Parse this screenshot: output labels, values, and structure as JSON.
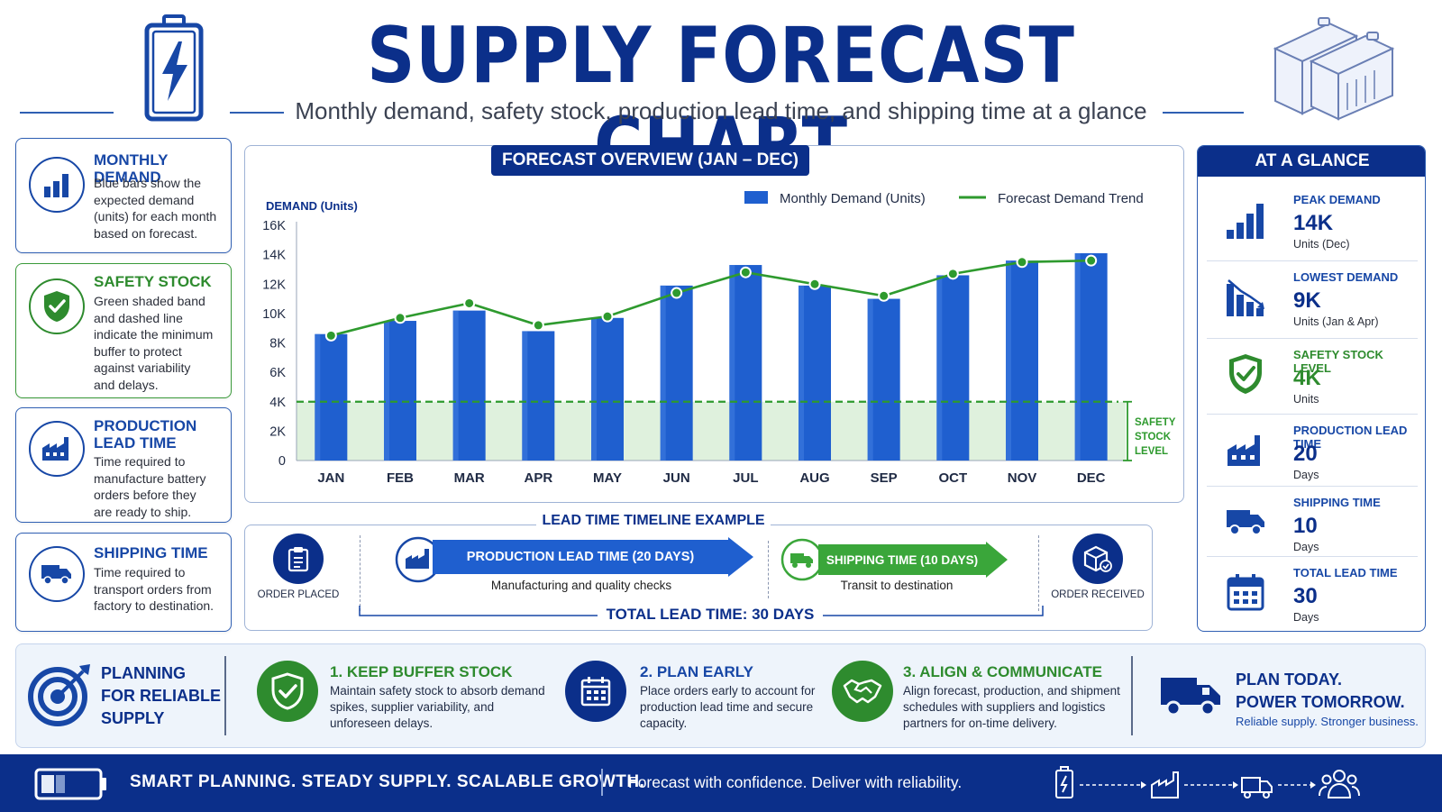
{
  "header": {
    "title": "SUPPLY FORECAST CHART",
    "subtitle": "Monthly demand, safety stock, production lead time, and shipping time at a glance",
    "logo_icon": "battery-bolt-icon",
    "art_icon": "battery-cells-icon"
  },
  "info_cards": [
    {
      "title": "MONTHLY DEMAND",
      "text_lines": [
        "Blue bars show the",
        "expected demand",
        "(units) for each month",
        "based on forecast."
      ],
      "icon": "bar-chart-icon",
      "color": "#1747a6"
    },
    {
      "title": "SAFETY STOCK",
      "text_lines": [
        "Green shaded band",
        "and dashed line",
        "indicate the minimum",
        "buffer to protect",
        "against variability",
        "and delays."
      ],
      "icon": "shield-check-icon",
      "color": "#2e8b2e"
    },
    {
      "title_lines": [
        "PRODUCTION",
        "LEAD TIME"
      ],
      "text_lines": [
        "Time required to",
        "manufacture battery",
        "orders before they",
        "are ready to ship."
      ],
      "icon": "factory-icon",
      "color": "#1747a6"
    },
    {
      "title": "SHIPPING TIME",
      "text_lines": [
        "Time required to",
        "transport orders from",
        "factory to destination."
      ],
      "icon": "truck-icon",
      "color": "#1747a6"
    }
  ],
  "chart_data": {
    "type": "bar",
    "title": "FORECAST OVERVIEW (JAN – DEC)",
    "ylabel": "DEMAND (Units)",
    "xlabel": "",
    "categories": [
      "JAN",
      "FEB",
      "MAR",
      "APR",
      "MAY",
      "JUN",
      "JUL",
      "AUG",
      "SEP",
      "OCT",
      "NOV",
      "DEC"
    ],
    "series": [
      {
        "name": "Monthly Demand (Units)",
        "type": "bar",
        "color": "#1f5fcf",
        "values": [
          8600,
          9500,
          10200,
          8800,
          9700,
          11900,
          13300,
          11900,
          11000,
          12600,
          13600,
          14100
        ]
      },
      {
        "name": "Forecast Demand Trend",
        "type": "line",
        "color": "#2e9a2e",
        "values": [
          8500,
          9700,
          10700,
          9200,
          9800,
          11400,
          12800,
          12000,
          11200,
          12700,
          13500,
          13600
        ]
      }
    ],
    "ylim": [
      0,
      16000
    ],
    "yticks": [
      0,
      2000,
      4000,
      6000,
      8000,
      10000,
      12000,
      14000,
      16000
    ],
    "ytick_labels": [
      "0",
      "2K",
      "4K",
      "6K",
      "8K",
      "10K",
      "12K",
      "14K",
      "16K"
    ],
    "safety_stock": {
      "value": 4000,
      "label_lines": [
        "SAFETY",
        "STOCK",
        "LEVEL"
      ],
      "color": "#2e9a2e"
    },
    "grid": false,
    "legend": "top-right"
  },
  "timeline": {
    "title": "LEAD TIME TIMELINE EXAMPLE",
    "start": {
      "label": "ORDER PLACED",
      "icon": "clipboard-icon"
    },
    "production": {
      "label": "PRODUCTION LEAD TIME (20 DAYS)",
      "sub": "Manufacturing and quality checks",
      "icon": "factory-icon",
      "color": "#1f5fcf"
    },
    "shipping": {
      "label": "SHIPPING TIME (10 DAYS)",
      "sub": "Transit to destination",
      "icon": "truck-icon",
      "color": "#3aa63a"
    },
    "end": {
      "label": "ORDER RECEIVED",
      "icon": "box-check-icon"
    },
    "total": "TOTAL LEAD TIME: 30 DAYS"
  },
  "glance": {
    "title": "AT A GLANCE",
    "items": [
      {
        "label": "PEAK DEMAND",
        "value": "14K",
        "unit": "Units (Dec)",
        "icon": "rising-bars-icon",
        "color": "#1747a6"
      },
      {
        "label": "LOWEST DEMAND",
        "value": "9K",
        "unit": "Units (Jan & Apr)",
        "icon": "falling-bars-icon",
        "color": "#1747a6"
      },
      {
        "label": "SAFETY STOCK LEVEL",
        "value": "4K",
        "unit": "Units",
        "icon": "shield-check-icon",
        "color": "#2e8b2e"
      },
      {
        "label": "PRODUCTION LEAD TIME",
        "value": "20",
        "unit": "Days",
        "icon": "factory-icon",
        "color": "#1747a6"
      },
      {
        "label": "SHIPPING TIME",
        "value": "10",
        "unit": "Days",
        "icon": "truck-icon",
        "color": "#1747a6"
      },
      {
        "label": "TOTAL LEAD TIME",
        "value": "30",
        "unit": "Days",
        "icon": "calendar-icon",
        "color": "#1747a6"
      }
    ]
  },
  "planning": {
    "title_lines": [
      "PLANNING",
      "FOR RELIABLE",
      "SUPPLY"
    ],
    "title_icon": "target-icon",
    "steps": [
      {
        "head": "1. KEEP BUFFER STOCK",
        "text_lines": [
          "Maintain safety stock to absorb demand",
          "spikes, supplier variability, and",
          "unforeseen delays."
        ],
        "icon": "shield-check-icon",
        "color": "#2e8b2e"
      },
      {
        "head": "2. PLAN EARLY",
        "text_lines": [
          "Place orders early to account for",
          "production lead time and secure",
          "capacity."
        ],
        "icon": "calendar-icon",
        "color": "#1747a6"
      },
      {
        "head": "3. ALIGN & COMMUNICATE",
        "text_lines": [
          "Align forecast, production, and shipment",
          "schedules with suppliers and logistics",
          "partners for on-time delivery."
        ],
        "icon": "handshake-icon",
        "color": "#2e8b2e"
      }
    ],
    "cta_lines": [
      "PLAN TODAY.",
      "POWER TOMORROW."
    ],
    "cta_tag": "Reliable supply. Stronger business.",
    "cta_icon": "delivery-truck-icon"
  },
  "footer": {
    "left": "SMART PLANNING. STEADY SUPPLY. SCALABLE GROWTH.",
    "right": "Forecast with confidence. Deliver with reliability.",
    "flow_icons": [
      "battery-icon",
      "factory-icon",
      "truck-icon",
      "people-icon"
    ]
  }
}
